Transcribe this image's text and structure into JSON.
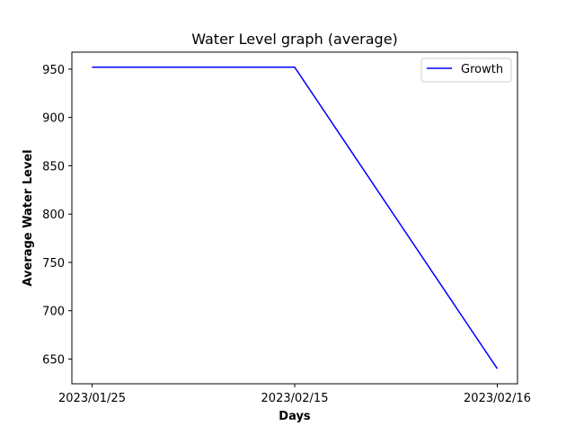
{
  "chart_data": {
    "type": "line",
    "title": "Water Level graph (average)",
    "xlabel": "Days",
    "ylabel": "Average Water Level",
    "categories": [
      "2023/01/25",
      "2023/02/15",
      "2023/02/16"
    ],
    "series": [
      {
        "name": "Growth",
        "color": "#0000ff",
        "values": [
          952,
          952,
          640
        ]
      }
    ],
    "ylim": [
      624.4,
      967.6
    ],
    "yticks": [
      650,
      700,
      750,
      800,
      850,
      900,
      950
    ],
    "grid": false,
    "legend_position": "top-right"
  }
}
